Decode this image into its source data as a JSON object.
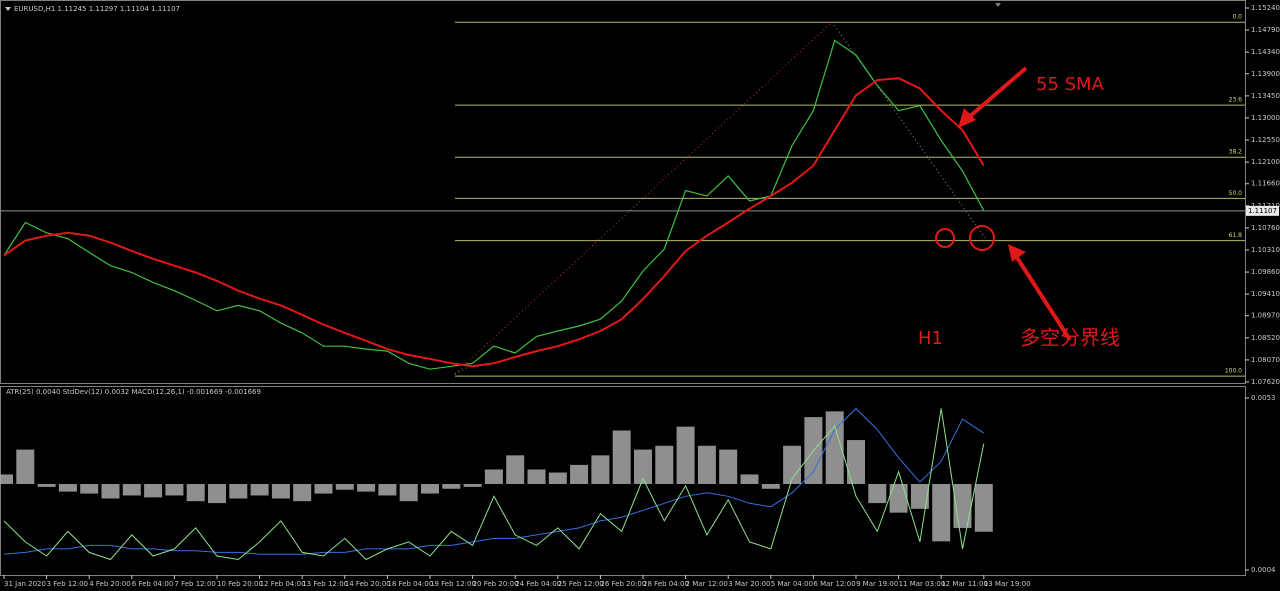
{
  "chart_data": [
    {
      "type": "line",
      "title": "EURUSD,H1  1.11245 1.11297 1.11104 1.11107",
      "categories": [
        "31 Jan 2020",
        null,
        "3 Feb 12:00",
        null,
        "4 Feb 20:00",
        null,
        "6 Feb 04:00",
        null,
        "7 Feb 12:00",
        null,
        "10 Feb 20:00",
        null,
        "12 Feb 04:00",
        null,
        "13 Feb 12:00",
        null,
        "14 Feb 20:00",
        null,
        "18 Feb 04:00",
        null,
        "19 Feb 12:00",
        null,
        "20 Feb 20:00",
        null,
        "24 Feb 04:00",
        null,
        "25 Feb 12:00",
        null,
        "26 Feb 20:00",
        null,
        "28 Feb 04:00",
        null,
        "2 Mar 12:00",
        null,
        "3 Mar 20:00",
        null,
        "5 Mar 04:00",
        null,
        "6 Mar 12:00",
        null,
        "9 Mar 19:00",
        null,
        "11 Mar 03:00",
        null,
        "12 Mar 11:00",
        null,
        "13 Mar 19:00"
      ],
      "series": [
        {
          "color": "#3fc03f",
          "values": [
            1.102,
            1.1087,
            1.1066,
            1.1054,
            1.1026,
            1.0999,
            1.0985,
            1.0965,
            1.0948,
            1.0928,
            1.0907,
            1.0918,
            1.0907,
            1.0882,
            1.0862,
            1.0835,
            1.0835,
            1.0829,
            1.0825,
            1.08,
            1.0788,
            1.0794,
            1.08,
            1.0835,
            1.0821,
            1.0855,
            1.0866,
            1.0876,
            1.089,
            1.0927,
            1.0988,
            1.1033,
            1.1152,
            1.1141,
            1.1182,
            1.1131,
            1.1141,
            1.1244,
            1.1315,
            1.1458,
            1.1428,
            1.1366,
            1.1315,
            1.1325,
            1.1254,
            1.1192,
            1.1111
          ]
        },
        {
          "color": "#e01818",
          "values": [
            1.102,
            1.105,
            1.106,
            1.1066,
            1.106,
            1.1046,
            1.1029,
            1.1013,
            1.0999,
            1.0985,
            1.0968,
            1.0948,
            1.0932,
            1.0918,
            1.0899,
            1.0879,
            1.0862,
            1.0846,
            1.0829,
            1.0817,
            1.0809,
            1.08,
            1.0794,
            1.08,
            1.0813,
            1.0825,
            1.0835,
            1.0849,
            1.0866,
            1.089,
            1.0931,
            1.0978,
            1.1029,
            1.106,
            1.1087,
            1.1115,
            1.1141,
            1.1168,
            1.1203,
            1.1275,
            1.1346,
            1.1377,
            1.1381,
            1.136,
            1.1315,
            1.1275,
            1.1203
          ]
        }
      ],
      "ylim": [
        1.0762,
        1.1524
      ],
      "yticks": [
        {
          "value": 1.1524,
          "label": "1.15240"
        },
        {
          "value": 1.1479,
          "label": "1.14790"
        },
        {
          "value": 1.1434,
          "label": "1.14340"
        },
        {
          "value": 1.139,
          "label": "1.13900"
        },
        {
          "value": 1.1345,
          "label": "1.13450"
        },
        {
          "value": 1.13,
          "label": "1.13000"
        },
        {
          "value": 1.1255,
          "label": "1.12550"
        },
        {
          "value": 1.121,
          "label": "1.12100"
        },
        {
          "value": 1.1166,
          "label": "1.11660"
        },
        {
          "value": 1.1121,
          "label": "1.11210"
        },
        {
          "value": 1.1076,
          "label": "1.10760"
        },
        {
          "value": 1.1031,
          "label": "1.10310"
        },
        {
          "value": 1.0986,
          "label": "1.09860"
        },
        {
          "value": 1.0941,
          "label": "1.09410"
        },
        {
          "value": 1.0897,
          "label": "1.08970"
        },
        {
          "value": 1.0852,
          "label": "1.08520"
        },
        {
          "value": 1.0807,
          "label": "1.08070"
        },
        {
          "value": 1.0762,
          "label": "1.07620"
        }
      ],
      "last_price": 1.11107,
      "fib_levels": [
        {
          "value": 1.1495,
          "label": "0.0"
        },
        {
          "value": 1.1326,
          "label": "23.6"
        },
        {
          "value": 1.122,
          "label": "38.2"
        },
        {
          "value": 1.1136,
          "label": "50.0"
        },
        {
          "value": 1.105,
          "label": "61.8"
        },
        {
          "value": 1.0774,
          "label": "100.0"
        }
      ],
      "annotations": [
        "55 SMA",
        "H1",
        "多空分界线"
      ]
    },
    {
      "type": "indicator",
      "title": "ATR(25) 0.0040  StdDev(12) 0.0032  MACD(12,26,1) -0.001669 -0.001669",
      "ylim": [
        0.0004,
        0.0053
      ],
      "yticks": [
        0.0053,
        0.0004
      ],
      "y2lim": [
        -0.0045,
        0.0045
      ],
      "series": [
        {
          "type": "bar",
          "axis": "y2",
          "color": "#a8a8a8",
          "values": [
            0.0005,
            0.0018,
            -0.00015,
            -0.0004,
            -0.0005,
            -0.00076,
            -0.0006,
            -0.0007,
            -0.0006,
            -0.0009,
            -0.001,
            -0.00076,
            -0.0006,
            -0.00076,
            -0.0009,
            -0.0005,
            -0.0003,
            -0.0004,
            -0.0006,
            -0.0009,
            -0.0005,
            -0.00025,
            -0.00015,
            0.00076,
            0.0015,
            0.00076,
            0.0006,
            0.001,
            0.0015,
            0.0028,
            0.0018,
            0.002,
            0.003,
            0.002,
            0.0018,
            0.0005,
            -0.00025,
            0.002,
            0.0035,
            0.0038,
            0.0023,
            -0.001,
            -0.0015,
            -0.0013,
            -0.003,
            -0.0023,
            -0.0025
          ]
        },
        {
          "type": "line",
          "color": "#3a6fe0",
          "values": [
            0.00085,
            0.0009,
            0.001,
            0.001,
            0.0011,
            0.0011,
            0.001,
            0.001,
            0.00095,
            0.00095,
            0.0009,
            0.0009,
            0.00085,
            0.00085,
            0.00085,
            0.0009,
            0.0009,
            0.001,
            0.001,
            0.001,
            0.0011,
            0.0011,
            0.0012,
            0.0013,
            0.0013,
            0.0014,
            0.0015,
            0.0016,
            0.0018,
            0.0019,
            0.0021,
            0.0023,
            0.0025,
            0.0026,
            0.0025,
            0.0023,
            0.0022,
            0.0026,
            0.0032,
            0.0044,
            0.005,
            0.0044,
            0.0036,
            0.0029,
            0.0035,
            0.0047,
            0.0043
          ]
        },
        {
          "type": "line",
          "color": "#8ee08e",
          "values": [
            0.0018,
            0.0012,
            0.0008,
            0.0015,
            0.0009,
            0.0007,
            0.0014,
            0.0008,
            0.001,
            0.0016,
            0.0008,
            0.0007,
            0.0012,
            0.0018,
            0.0009,
            0.0008,
            0.0013,
            0.0007,
            0.001,
            0.0012,
            0.0008,
            0.0015,
            0.0011,
            0.0025,
            0.0014,
            0.0011,
            0.0016,
            0.001,
            0.002,
            0.0015,
            0.003,
            0.0018,
            0.0028,
            0.0014,
            0.0024,
            0.0012,
            0.001,
            0.003,
            0.0038,
            0.0045,
            0.0025,
            0.0015,
            0.0032,
            0.0012,
            0.005,
            0.001,
            0.004
          ]
        }
      ]
    }
  ]
}
